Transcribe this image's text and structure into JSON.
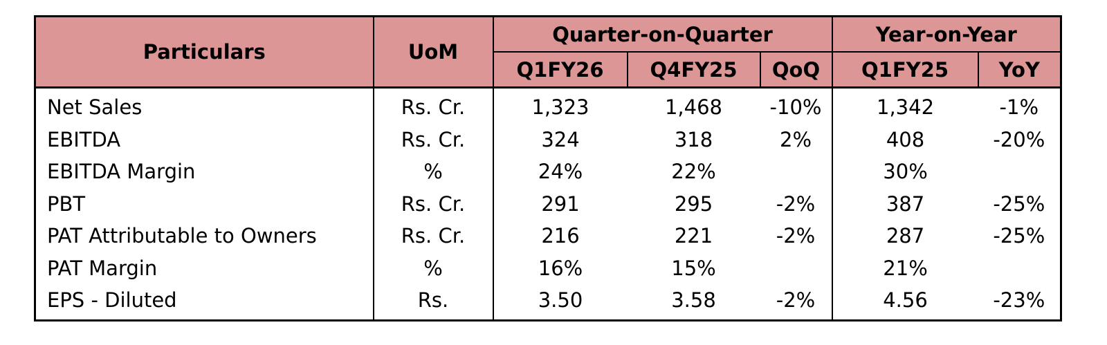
{
  "table": {
    "header": {
      "particulars": "Particulars",
      "uom": "UoM",
      "group_qoq": "Quarter-on-Quarter",
      "group_yoy": "Year-on-Year",
      "col_q1fy26": "Q1FY26",
      "col_q4fy25": "Q4FY25",
      "col_qoq": "QoQ",
      "col_q1fy25": "Q1FY25",
      "col_yoy": "YoY"
    },
    "header_color": "#dc9696",
    "rows": [
      {
        "particular": "Net Sales",
        "uom": "Rs. Cr.",
        "q1fy26": "1,323",
        "q4fy25": "1,468",
        "qoq": "-10%",
        "q1fy25": "1,342",
        "yoy": "-1%"
      },
      {
        "particular": "EBITDA",
        "uom": "Rs. Cr.",
        "q1fy26": "324",
        "q4fy25": "318",
        "qoq": "2%",
        "q1fy25": "408",
        "yoy": "-20%"
      },
      {
        "particular": "EBITDA Margin",
        "uom": "%",
        "q1fy26": "24%",
        "q4fy25": "22%",
        "qoq": "",
        "q1fy25": "30%",
        "yoy": ""
      },
      {
        "particular": "PBT",
        "uom": "Rs. Cr.",
        "q1fy26": "291",
        "q4fy25": "295",
        "qoq": "-2%",
        "q1fy25": "387",
        "yoy": "-25%"
      },
      {
        "particular": "PAT Attributable to Owners",
        "uom": "Rs. Cr.",
        "q1fy26": "216",
        "q4fy25": "221",
        "qoq": "-2%",
        "q1fy25": "287",
        "yoy": "-25%"
      },
      {
        "particular": "PAT Margin",
        "uom": "%",
        "q1fy26": "16%",
        "q4fy25": "15%",
        "qoq": "",
        "q1fy25": "21%",
        "yoy": ""
      },
      {
        "particular": "EPS - Diluted",
        "uom": "Rs.",
        "q1fy26": "3.50",
        "q4fy25": "3.58",
        "qoq": "-2%",
        "q1fy25": "4.56",
        "yoy": "-23%"
      }
    ]
  }
}
